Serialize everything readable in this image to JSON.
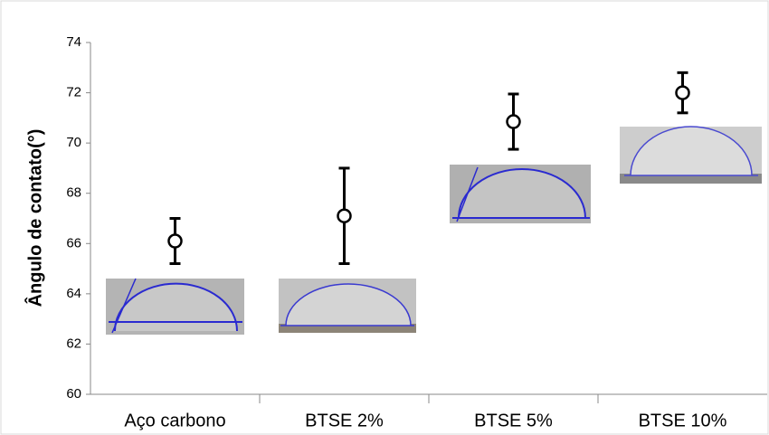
{
  "chart_data": {
    "type": "errorbar",
    "y_label": "Ângulo de contato(°)",
    "categories": [
      "Aço carbono",
      "BTSE 2%",
      "BTSE 5%",
      "BTSE 10%"
    ],
    "values": [
      66.1,
      67.1,
      70.85,
      72.0
    ],
    "errors": [
      0.9,
      1.9,
      1.1,
      0.8
    ],
    "color": "#000000",
    "ylim": [
      60,
      74
    ],
    "yticks": [
      60,
      62,
      64,
      66,
      68,
      70,
      72,
      74
    ],
    "grid": false
  }
}
